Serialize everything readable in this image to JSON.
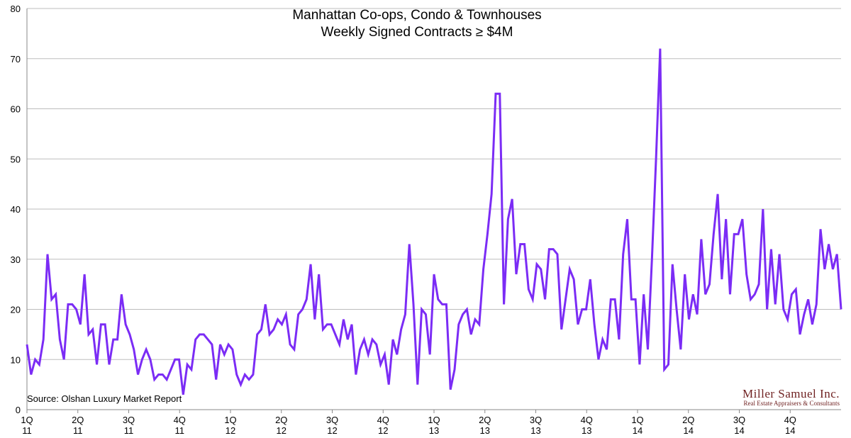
{
  "chart_data": {
    "type": "line",
    "title": "Manhattan Co-ops, Condo & Townhouses",
    "subtitle": "Weekly Signed Contracts ≥ $4M",
    "source": "Source: Olshan Luxury Market Report",
    "brand": {
      "name": "Miller Samuel Inc.",
      "tagline": "Real Estate Appraisers & Consultants"
    },
    "ylim": [
      0,
      80
    ],
    "yticks": [
      0,
      10,
      20,
      30,
      40,
      50,
      60,
      70,
      80
    ],
    "grid": true,
    "line_color": "#7b2cf5",
    "quarter_labels": [
      [
        "1Q",
        "11"
      ],
      [
        "2Q",
        "11"
      ],
      [
        "3Q",
        "11"
      ],
      [
        "4Q",
        "11"
      ],
      [
        "1Q",
        "12"
      ],
      [
        "2Q",
        "12"
      ],
      [
        "3Q",
        "12"
      ],
      [
        "4Q",
        "12"
      ],
      [
        "1Q",
        "13"
      ],
      [
        "2Q",
        "13"
      ],
      [
        "3Q",
        "13"
      ],
      [
        "4Q",
        "13"
      ],
      [
        "1Q",
        "14"
      ],
      [
        "2Q",
        "14"
      ],
      [
        "3Q",
        "14"
      ],
      [
        "4Q",
        "14"
      ]
    ],
    "series": [
      {
        "values": [
          13,
          7,
          10,
          9,
          14,
          31,
          22,
          23,
          14,
          10,
          21,
          21,
          20,
          17,
          27,
          15,
          16,
          9,
          17,
          17,
          9,
          14,
          14,
          23,
          17,
          15,
          12,
          7,
          10,
          12,
          10,
          6,
          7,
          7,
          6,
          8,
          10,
          10,
          3,
          9,
          8,
          14,
          15,
          15,
          14,
          13,
          6,
          13,
          11,
          13,
          12,
          7,
          5,
          7,
          6,
          7,
          15,
          16,
          21,
          15,
          16,
          18,
          17,
          19,
          13,
          12,
          19,
          20,
          22,
          29,
          18,
          27,
          16,
          17,
          17,
          15,
          13,
          18,
          14,
          17,
          7,
          12,
          14,
          11,
          14,
          13,
          9,
          11,
          5,
          14,
          11,
          16,
          19,
          33,
          21,
          5,
          20,
          19,
          11,
          27,
          22,
          21,
          21,
          4,
          8,
          17,
          19,
          20,
          15,
          18,
          17,
          28,
          35,
          43,
          63,
          63,
          21,
          38,
          42,
          27,
          33,
          33,
          24,
          22,
          29,
          28,
          22,
          32,
          32,
          31,
          16,
          22,
          28,
          26,
          17,
          20,
          20,
          26,
          17,
          10,
          14,
          12,
          22,
          22,
          14,
          31,
          38,
          22,
          22,
          9,
          23,
          12,
          30,
          50,
          72,
          8,
          9,
          29,
          20,
          12,
          27,
          18,
          23,
          19,
          34,
          23,
          25,
          35,
          43,
          26,
          38,
          23,
          35,
          35,
          38,
          27,
          22,
          23,
          25,
          40,
          20,
          32,
          21,
          31,
          20,
          18,
          23,
          24,
          15,
          19,
          22,
          17,
          21,
          36,
          28,
          33,
          28,
          31,
          20
        ]
      }
    ]
  }
}
